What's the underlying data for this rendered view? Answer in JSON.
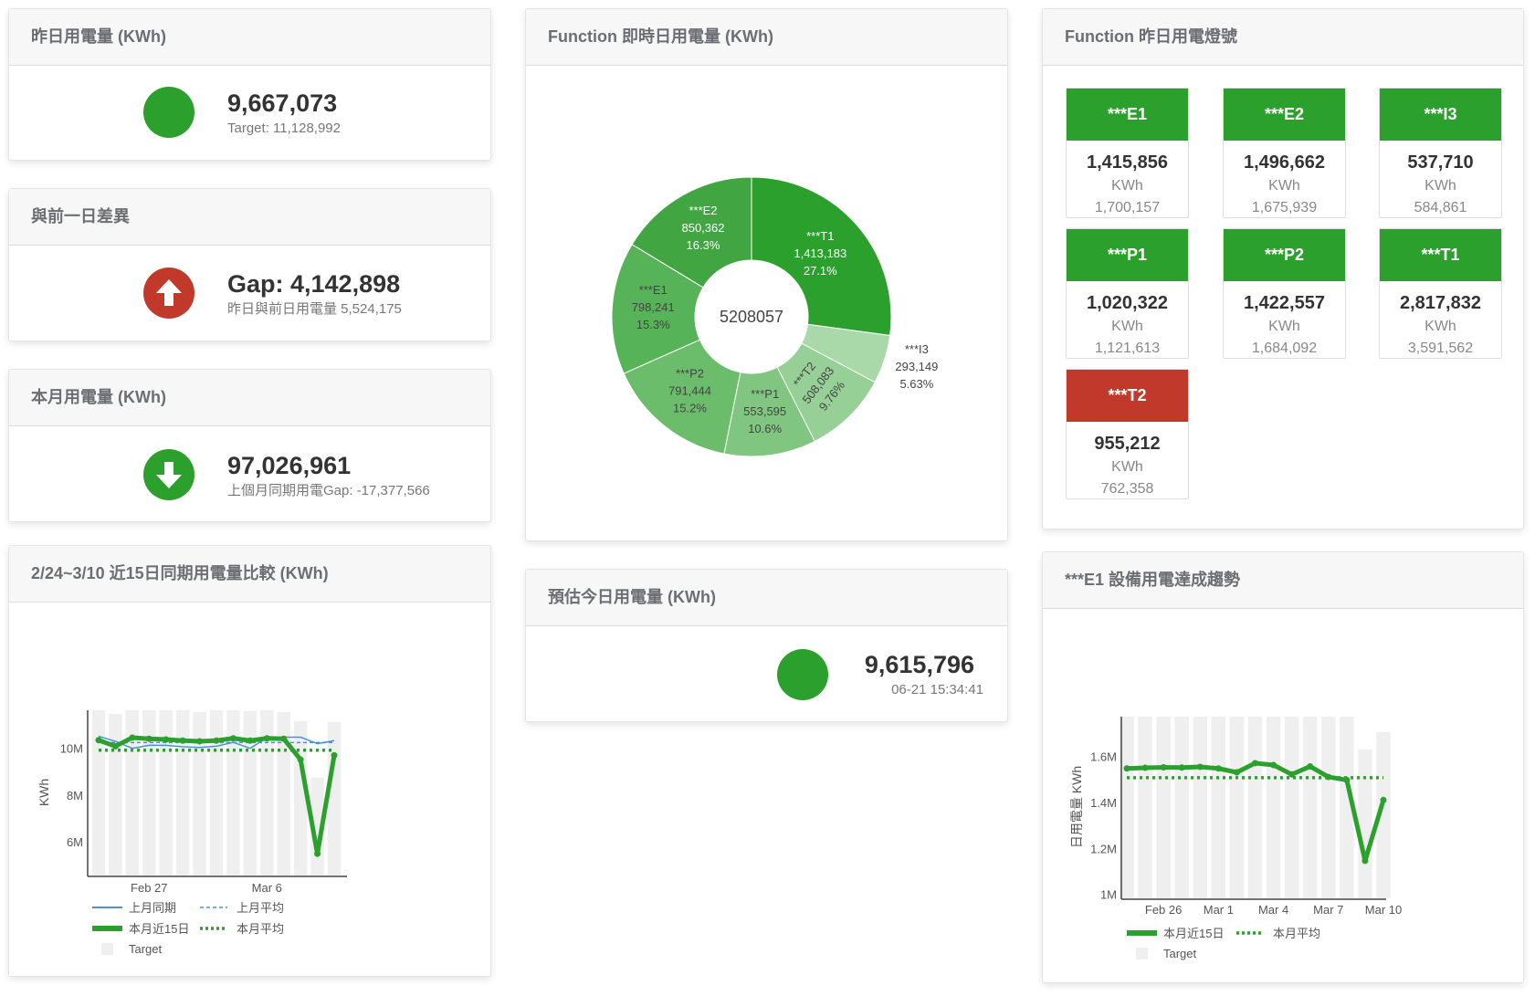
{
  "colors": {
    "green": "#2ca02c",
    "red": "#c0392b",
    "header_bg": "#f7f7f7",
    "target_bar": "#efefef",
    "last_month_line": "#4a90d9"
  },
  "yesterday": {
    "title": "昨日用電量 (KWh)",
    "value": "9,667,073",
    "target": "Target: 11,128,992",
    "status_icon": "green-circle"
  },
  "gap": {
    "title": "與前一日差異",
    "value": "Gap: 4,142,898",
    "detail": "昨日與前日用電量 5,524,175",
    "icon": "arrow-up-icon"
  },
  "month": {
    "title": "本月用電量 (KWh)",
    "value": "97,026,961",
    "detail": "上個月同期用電Gap: -17,377,566",
    "icon": "arrow-down-icon"
  },
  "estimate": {
    "title": "預估今日用電量 (KWh)",
    "value": "9,615,796",
    "timestamp": "06-21 15:34:41",
    "status_icon": "green-circle"
  },
  "pie_panel": {
    "title": "Function 即時日用電量 (KWh)"
  },
  "lights": {
    "title": "Function 昨日用電燈號",
    "unit": "KWh",
    "items": [
      {
        "name": "***E1",
        "value": "1,415,856",
        "target": "1,700,157",
        "status": "green"
      },
      {
        "name": "***E2",
        "value": "1,496,662",
        "target": "1,675,939",
        "status": "green"
      },
      {
        "name": "***I3",
        "value": "537,710",
        "target": "584,861",
        "status": "green"
      },
      {
        "name": "***P1",
        "value": "1,020,322",
        "target": "1,121,613",
        "status": "green"
      },
      {
        "name": "***P2",
        "value": "1,422,557",
        "target": "1,684,092",
        "status": "green"
      },
      {
        "name": "***T1",
        "value": "2,817,832",
        "target": "3,591,562",
        "status": "green"
      },
      {
        "name": "***T2",
        "value": "955,212",
        "target": "762,358",
        "status": "red"
      }
    ]
  },
  "compare_panel": {
    "title": "2/24~3/10 近15日同期用電量比較 (KWh)"
  },
  "trend_panel": {
    "title": "***E1 設備用電達成趨勢"
  },
  "chart_data": [
    {
      "type": "pie",
      "variant": "donut",
      "center_label": "5208057",
      "slices": [
        {
          "label": "***T1",
          "value": 1413183,
          "value_text": "1,413,183",
          "percent": "27.1%",
          "color": "#2ca02c"
        },
        {
          "label": "***I3",
          "value": 293149,
          "value_text": "293,149",
          "percent": "5.63%",
          "color": "#a9d9a9"
        },
        {
          "label": "***T2",
          "value": 508083,
          "value_text": "508,083",
          "percent": "9.76%",
          "color": "#96d096"
        },
        {
          "label": "***P1",
          "value": 553595,
          "value_text": "553,595",
          "percent": "10.6%",
          "color": "#80c680"
        },
        {
          "label": "***P2",
          "value": 791444,
          "value_text": "791,444",
          "percent": "15.2%",
          "color": "#6bbd6b"
        },
        {
          "label": "***E1",
          "value": 798241,
          "value_text": "798,241",
          "percent": "15.3%",
          "color": "#57b357"
        },
        {
          "label": "***E2",
          "value": 850362,
          "value_text": "850,362",
          "percent": "16.3%",
          "color": "#41a641"
        }
      ]
    },
    {
      "type": "bar+line",
      "xlabel": "",
      "ylabel": "KWh",
      "x": [
        "Feb 24",
        "Feb 25",
        "Feb 26",
        "Feb 27",
        "Feb 28",
        "Mar 1",
        "Mar 2",
        "Mar 3",
        "Mar 4",
        "Mar 5",
        "Mar 6",
        "Mar 7",
        "Mar 8",
        "Mar 9",
        "Mar 10"
      ],
      "x_ticks": [
        {
          "index": 3,
          "label": "Feb 27"
        },
        {
          "index": 10,
          "label": "Mar 6"
        }
      ],
      "y_ticks": [
        {
          "value": 6,
          "label": "6M"
        },
        {
          "value": 8,
          "label": "8M"
        },
        {
          "value": 10,
          "label": "10M"
        }
      ],
      "ylim": [
        4.56,
        11.63
      ],
      "y_unit": "M",
      "grid": false,
      "legend_position": "bottom",
      "series": [
        {
          "name": "上月同期",
          "kind": "line",
          "style": "solid-thin",
          "color": "#4a90d9",
          "values": [
            10.52,
            10.3,
            10.0,
            10.13,
            10.13,
            10.07,
            10.04,
            10.09,
            10.26,
            10.0,
            10.46,
            10.48,
            10.48,
            10.2,
            10.33
          ]
        },
        {
          "name": "上月平均",
          "kind": "hline",
          "style": "dashed",
          "color": "#4a90d9",
          "value": 10.25
        },
        {
          "name": "本月近15日",
          "kind": "line",
          "style": "thick-markers",
          "color": "#2ca02c",
          "values": [
            10.35,
            10.09,
            10.46,
            10.41,
            10.38,
            10.33,
            10.3,
            10.33,
            10.43,
            10.33,
            10.43,
            10.41,
            9.52,
            5.49,
            9.7
          ]
        },
        {
          "name": "本月平均",
          "kind": "hline",
          "style": "dotted",
          "color": "#2ca02c",
          "value": 9.92
        },
        {
          "name": "Target",
          "kind": "bar",
          "color": "#efefef",
          "values": [
            11.63,
            11.47,
            11.63,
            11.63,
            11.63,
            11.63,
            11.56,
            11.63,
            11.63,
            11.6,
            11.63,
            11.56,
            11.17,
            8.75,
            11.13
          ]
        }
      ]
    },
    {
      "type": "bar+line",
      "xlabel": "",
      "ylabel": "日用電量 KWh",
      "x": [
        "Feb 24",
        "Feb 25",
        "Feb 26",
        "Feb 27",
        "Feb 28",
        "Mar 1",
        "Mar 2",
        "Mar 3",
        "Mar 4",
        "Mar 5",
        "Mar 6",
        "Mar 7",
        "Mar 8",
        "Mar 9",
        "Mar 10"
      ],
      "x_ticks": [
        {
          "index": 2,
          "label": "Feb 26"
        },
        {
          "index": 5,
          "label": "Mar 1"
        },
        {
          "index": 8,
          "label": "Mar 4"
        },
        {
          "index": 11,
          "label": "Mar 7"
        },
        {
          "index": 14,
          "label": "Mar 10"
        }
      ],
      "y_ticks": [
        {
          "value": 1.0,
          "label": "1M"
        },
        {
          "value": 1.2,
          "label": "1.2M"
        },
        {
          "value": 1.4,
          "label": "1.4M"
        },
        {
          "value": 1.6,
          "label": "1.6M"
        }
      ],
      "ylim": [
        0.983,
        1.772
      ],
      "y_unit": "M",
      "grid": false,
      "legend_position": "bottom",
      "series": [
        {
          "name": "本月近15日",
          "kind": "line",
          "style": "thick-markers",
          "color": "#2ca02c",
          "values": [
            1.547,
            1.55,
            1.552,
            1.551,
            1.554,
            1.547,
            1.53,
            1.57,
            1.562,
            1.521,
            1.556,
            1.51,
            1.497,
            1.146,
            1.41
          ]
        },
        {
          "name": "本月平均",
          "kind": "hline",
          "style": "dotted",
          "color": "#2ca02c",
          "value": 1.507
        },
        {
          "name": "Target",
          "kind": "bar",
          "color": "#efefef",
          "values": [
            1.772,
            1.772,
            1.772,
            1.772,
            1.772,
            1.772,
            1.772,
            1.772,
            1.772,
            1.772,
            1.772,
            1.772,
            1.772,
            1.63,
            1.705
          ]
        }
      ]
    }
  ]
}
